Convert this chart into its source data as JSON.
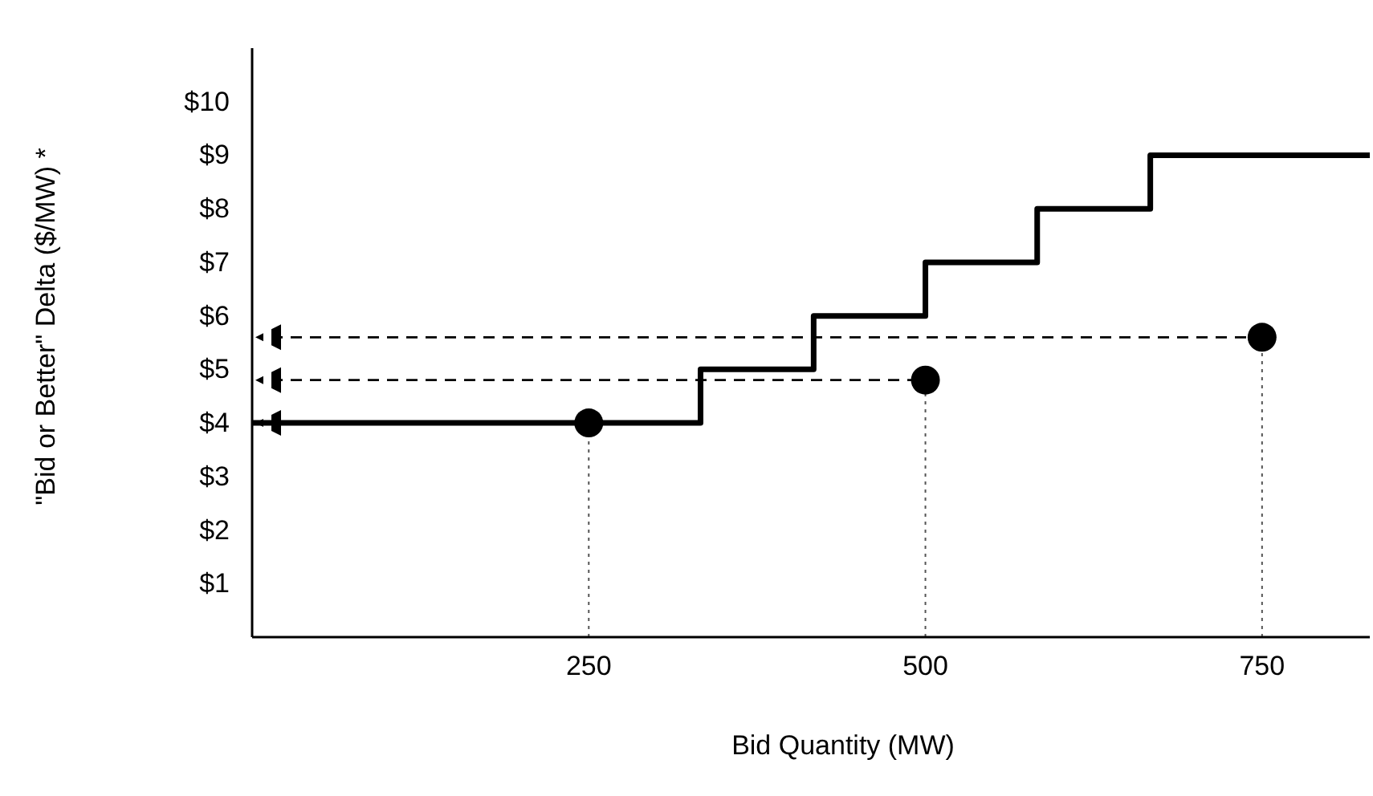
{
  "chart_data": {
    "type": "step",
    "xlabel": "Bid Quantity (MW)",
    "ylabel": "\"Bid or Better\" Delta ($/MW) *",
    "xlim": [
      0,
      830
    ],
    "ylim": [
      0,
      11
    ],
    "xticks": [
      250,
      500,
      750
    ],
    "yticks": [
      {
        "value": 1,
        "label": "$1"
      },
      {
        "value": 2,
        "label": "$2"
      },
      {
        "value": 3,
        "label": "$3"
      },
      {
        "value": 4,
        "label": "$4"
      },
      {
        "value": 5,
        "label": "$5"
      },
      {
        "value": 6,
        "label": "$6"
      },
      {
        "value": 7,
        "label": "$7"
      },
      {
        "value": 8,
        "label": "$8"
      },
      {
        "value": 9,
        "label": "$9"
      },
      {
        "value": 10,
        "label": "$10"
      }
    ],
    "grid": false,
    "series": [
      {
        "type": "step",
        "color": "#000000",
        "x": [
          0,
          333,
          417,
          500,
          583,
          667,
          830
        ],
        "values": [
          4,
          5,
          6,
          7,
          8,
          9,
          9
        ]
      },
      {
        "type": "line",
        "color": "#555555",
        "line_style": "dotted",
        "x": [
          250,
          250
        ],
        "values": [
          0,
          4
        ]
      },
      {
        "type": "line",
        "color": "#555555",
        "line_style": "dotted",
        "x": [
          500,
          500
        ],
        "values": [
          0,
          4.8
        ]
      },
      {
        "type": "line",
        "color": "#555555",
        "line_style": "dotted",
        "x": [
          750,
          750
        ],
        "values": [
          0,
          5.6
        ]
      },
      {
        "type": "scatter",
        "color": "#000000",
        "marker": "circle",
        "x": [
          250,
          500,
          750
        ],
        "values": [
          4,
          4.8,
          5.6
        ]
      }
    ]
  }
}
